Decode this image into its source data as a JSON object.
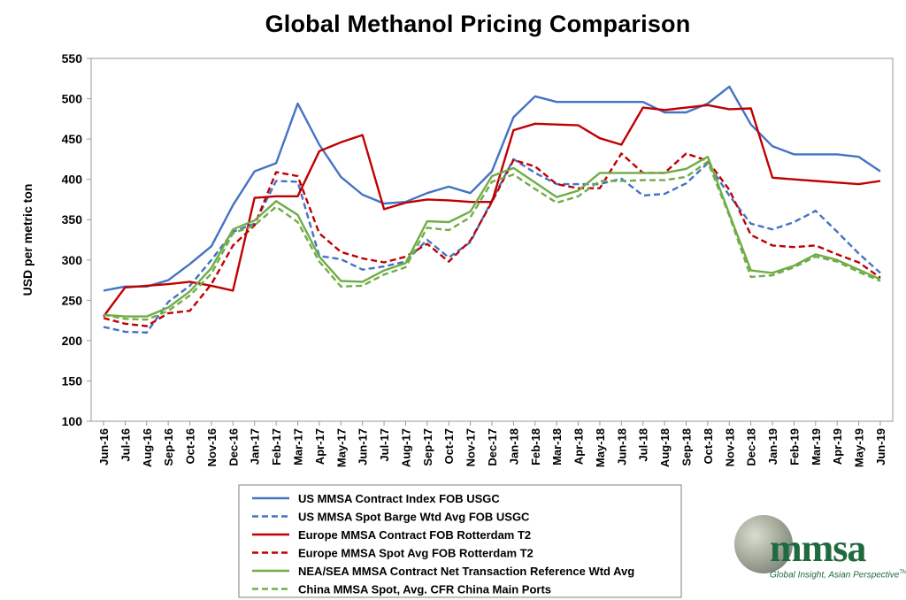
{
  "chart_data": {
    "type": "line",
    "title": "Global Methanol Pricing Comparison",
    "xlabel": "",
    "ylabel": "USD per metric ton",
    "ylim": [
      100,
      550
    ],
    "yticks": [
      100,
      150,
      200,
      250,
      300,
      350,
      400,
      450,
      500,
      550
    ],
    "grid": false,
    "legend_position": "bottom-center",
    "categories": [
      "Jun-16",
      "Jul-16",
      "Aug-16",
      "Sep-16",
      "Oct-16",
      "Nov-16",
      "Dec-16",
      "Jan-17",
      "Feb-17",
      "Mar-17",
      "Apr-17",
      "May-17",
      "Jun-17",
      "Jul-17",
      "Aug-17",
      "Sep-17",
      "Oct-17",
      "Nov-17",
      "Dec-17",
      "Jan-18",
      "Feb-18",
      "Mar-18",
      "Apr-18",
      "May-18",
      "Jun-18",
      "Jul-18",
      "Aug-18",
      "Sep-18",
      "Oct-18",
      "Nov-18",
      "Dec-18",
      "Jan-19",
      "Feb-19",
      "Mar-19",
      "Apr-19",
      "May-19",
      "Jun-19"
    ],
    "series": [
      {
        "name": "US MMSA Contract Index FOB USGC",
        "color": "#4472c4",
        "dash": "solid",
        "values": [
          262,
          267,
          267,
          275,
          295,
          317,
          368,
          410,
          420,
          494,
          443,
          403,
          381,
          370,
          372,
          383,
          391,
          383,
          410,
          477,
          503,
          496,
          496,
          496,
          496,
          496,
          483,
          483,
          494,
          515,
          468,
          441,
          431,
          431,
          431,
          428,
          410
        ]
      },
      {
        "name": "US MMSA Spot Barge Wtd Avg FOB USGC",
        "color": "#4472c4",
        "dash": "dashed",
        "values": [
          217,
          211,
          210,
          248,
          268,
          300,
          335,
          345,
          398,
          397,
          305,
          301,
          288,
          292,
          298,
          325,
          303,
          322,
          374,
          425,
          408,
          394,
          394,
          394,
          401,
          380,
          382,
          395,
          420,
          380,
          345,
          338,
          347,
          361,
          335,
          308,
          284
        ]
      },
      {
        "name": "Europe MMSA Contract FOB Rotterdam T2",
        "color": "#c00000",
        "dash": "solid",
        "values": [
          230,
          266,
          268,
          270,
          273,
          268,
          262,
          377,
          379,
          379,
          435,
          446,
          455,
          363,
          371,
          375,
          374,
          372,
          372,
          461,
          469,
          468,
          467,
          451,
          443,
          489,
          486,
          489,
          492,
          487,
          488,
          402,
          400,
          398,
          396,
          394,
          398
        ]
      },
      {
        "name": "Europe MMSA Spot Avg FOB Rotterdam T2",
        "color": "#c00000",
        "dash": "dashed",
        "values": [
          228,
          221,
          218,
          234,
          237,
          270,
          318,
          343,
          409,
          404,
          333,
          310,
          302,
          297,
          304,
          320,
          298,
          324,
          372,
          424,
          416,
          394,
          389,
          389,
          432,
          408,
          408,
          432,
          423,
          387,
          331,
          318,
          316,
          318,
          307,
          297,
          278
        ]
      },
      {
        "name": "NEA/SEA MMSA Contract Net Transaction Reference Wtd Avg",
        "color": "#70ad47",
        "dash": "solid",
        "values": [
          232,
          230,
          230,
          241,
          261,
          290,
          338,
          349,
          373,
          356,
          304,
          274,
          273,
          287,
          296,
          348,
          347,
          360,
          404,
          414,
          396,
          378,
          386,
          408,
          408,
          408,
          408,
          413,
          428,
          357,
          287,
          284,
          293,
          307,
          300,
          288,
          276
        ]
      },
      {
        "name": "China MMSA Spot, Avg. CFR China Main Ports",
        "color": "#70ad47",
        "dash": "dashed",
        "values": [
          232,
          227,
          226,
          237,
          256,
          283,
          333,
          343,
          366,
          347,
          298,
          267,
          268,
          282,
          291,
          340,
          337,
          353,
          397,
          406,
          388,
          371,
          379,
          398,
          398,
          399,
          399,
          403,
          422,
          355,
          279,
          281,
          291,
          304,
          298,
          285,
          274
        ]
      }
    ]
  },
  "logo": {
    "name": "mmsa",
    "tagline": "Global Insight, Asian Perspective",
    "trademark": "TM"
  }
}
